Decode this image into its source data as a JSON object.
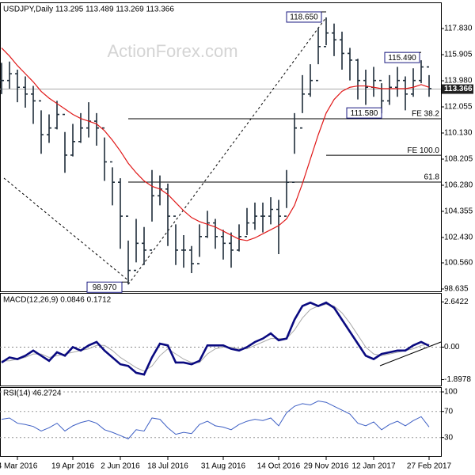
{
  "chart_data": {
    "type": "candlestick",
    "title": "USDJPY,Daily  113.295 113.489 113.269 113.366",
    "watermark": "ActionForex.com",
    "xlim": [
      -0.2,
      55.5
    ],
    "xticks": [
      {
        "value": 2,
        "label": "4 Mar 2016"
      },
      {
        "value": 9,
        "label": "19 Apr 2016"
      },
      {
        "value": 15,
        "label": "2 Jun 2016"
      },
      {
        "value": 21,
        "label": "18 Jul 2016"
      },
      {
        "value": 28,
        "label": "31 Aug 2016"
      },
      {
        "value": 35,
        "label": "14 Oct 2016"
      },
      {
        "value": 41,
        "label": "29 Nov 2016"
      },
      {
        "value": 47,
        "label": "12 Jan 2017"
      },
      {
        "value": 54,
        "label": "27 Feb 2017"
      }
    ],
    "ylim": [
      98.46,
      119.7
    ],
    "yticks": [
      {
        "value": 117.83,
        "label": "117.830"
      },
      {
        "value": 115.905,
        "label": "115.905"
      },
      {
        "value": 113.98,
        "label": "113.980"
      },
      {
        "value": 112.055,
        "label": "112.055"
      },
      {
        "value": 110.13,
        "label": "110.130"
      },
      {
        "value": 108.205,
        "label": "108.205"
      },
      {
        "value": 106.28,
        "label": "106.280"
      },
      {
        "value": 104.355,
        "label": "104.355"
      },
      {
        "value": 102.43,
        "label": "102.430"
      },
      {
        "value": 100.56,
        "label": "100.560"
      },
      {
        "value": 98.635,
        "label": "98.635"
      }
    ],
    "color": "#1f2d3a",
    "high": [
      115.3,
      115.4,
      114.8,
      114.3,
      113.6,
      111.8,
      111.5,
      112.5,
      110.2,
      110.8,
      111.6,
      112.4,
      111.6,
      109.8,
      107.6,
      106.8,
      102.2,
      103.8,
      103.2,
      107.4,
      107.0,
      106.4,
      103.4,
      102.6,
      101.8,
      103.4,
      104.4,
      103.8,
      103.0,
      102.8,
      103.4,
      104.6,
      105.0,
      105.0,
      105.4,
      105.2,
      107.4,
      111.6,
      114.4,
      115.2,
      117.9,
      118.65,
      118.2,
      117.6,
      116.4,
      115.6,
      114.8,
      115.0,
      113.8,
      114.4,
      115.0,
      114.3,
      114.9,
      115.49,
      114.4
    ],
    "low": [
      113.0,
      113.4,
      112.4,
      112.0,
      110.8,
      108.6,
      109.4,
      110.4,
      107.2,
      108.4,
      109.4,
      109.8,
      109.2,
      106.6,
      104.8,
      101.6,
      98.97,
      100.6,
      100.4,
      103.6,
      104.8,
      101.8,
      100.4,
      100.2,
      99.8,
      101.0,
      102.4,
      101.6,
      100.8,
      100.2,
      101.4,
      102.6,
      103.0,
      102.8,
      103.4,
      101.2,
      104.6,
      108.6,
      111.6,
      112.8,
      115.2,
      116.6,
      115.8,
      114.8,
      114.0,
      112.6,
      112.2,
      112.8,
      111.58,
      112.2,
      112.8,
      111.8,
      112.8,
      113.8,
      112.8
    ],
    "close": [
      114,
      114.5,
      113.5,
      113,
      112.5,
      110,
      110.5,
      111.5,
      108.5,
      109.5,
      110.5,
      111,
      110.5,
      108,
      106.5,
      104,
      100,
      102,
      101.5,
      105.5,
      106,
      104,
      101.5,
      101.5,
      100.5,
      102.5,
      103.5,
      102.5,
      102,
      101.5,
      102.5,
      103.5,
      104,
      104,
      104.5,
      104,
      106.5,
      110.5,
      113,
      114,
      116.5,
      117.5,
      117,
      116,
      115.5,
      114,
      113.5,
      114,
      112.5,
      113.5,
      114,
      113,
      114,
      115,
      113.4
    ],
    "moving_average": {
      "color": "#e01818",
      "values": [
        116.4,
        115.8,
        115.1,
        114.5,
        113.9,
        113.2,
        112.7,
        112.3,
        111.9,
        111.5,
        111.2,
        111.0,
        110.8,
        110.3,
        109.6,
        108.8,
        107.9,
        107.2,
        106.6,
        106.2,
        106.0,
        105.6,
        105.0,
        104.4,
        103.9,
        103.6,
        103.4,
        103.2,
        102.9,
        102.6,
        102.3,
        102.2,
        102.4,
        102.7,
        103.0,
        103.3,
        103.8,
        104.8,
        106.4,
        108.2,
        110.0,
        111.6,
        112.6,
        113.2,
        113.5,
        113.6,
        113.6,
        113.5,
        113.4,
        113.4,
        113.4,
        113.4,
        113.5,
        113.7,
        113.5
      ]
    },
    "last_price": 113.366,
    "annotations": [
      {
        "value": 118.65,
        "label": "118.650"
      },
      {
        "value": 98.97,
        "label": "98.970"
      },
      {
        "value": 111.58,
        "label": "111.580"
      },
      {
        "value": 115.49,
        "label": "115.490"
      }
    ],
    "levels": [
      {
        "label": "FE 38.2",
        "value": 111.18
      },
      {
        "label": "FE 100.0",
        "value": 108.49
      },
      {
        "label": "61.8",
        "value": 106.51
      }
    ],
    "macd": {
      "title": "MACD(12,26,9) 0.0846 0.1712",
      "ylim": [
        -2.29,
        3.12
      ],
      "yticks": [
        2.6422,
        {
          "value": 0,
          "label": "0.00"
        },
        -1.8978
      ],
      "series": [
        {
          "name": "MACD",
          "color": "#0a0a80",
          "values": [
            -0.9,
            -0.6,
            -0.7,
            -0.5,
            -0.2,
            -0.5,
            -0.8,
            -0.3,
            -0.5,
            0.0,
            -0.2,
            0.1,
            0.3,
            -0.2,
            -0.6,
            -1.0,
            -1.1,
            -1.5,
            -1.6,
            -0.6,
            0.2,
            0.1,
            -0.9,
            -0.9,
            -1.0,
            -0.8,
            0.1,
            0.1,
            0.1,
            -0.1,
            -0.2,
            0.0,
            0.3,
            0.5,
            0.8,
            0.4,
            0.5,
            1.6,
            2.4,
            2.6,
            2.4,
            2.6,
            2.3,
            1.6,
            0.9,
            0.2,
            -0.5,
            -0.7,
            -0.4,
            -0.3,
            -0.2,
            -0.2,
            0.1,
            0.3,
            0.08
          ]
        },
        {
          "name": "Signal",
          "color": "#a8a8a8",
          "values": [
            -0.8,
            -0.8,
            -0.7,
            -0.6,
            -0.4,
            -0.4,
            -0.6,
            -0.5,
            -0.4,
            -0.3,
            -0.2,
            -0.1,
            0.1,
            0.1,
            -0.2,
            -0.6,
            -0.9,
            -1.2,
            -1.4,
            -1.1,
            -0.5,
            -0.1,
            -0.4,
            -0.7,
            -0.9,
            -0.9,
            -0.4,
            -0.1,
            0.0,
            0.0,
            -0.1,
            -0.1,
            0.1,
            0.3,
            0.5,
            0.5,
            0.5,
            1.0,
            1.7,
            2.2,
            2.4,
            2.5,
            2.4,
            2.0,
            1.4,
            0.7,
            0.0,
            -0.4,
            -0.5,
            -0.4,
            -0.3,
            -0.2,
            -0.1,
            0.1,
            0.17
          ]
        }
      ]
    },
    "rsi": {
      "title": "RSI(14) 46.2724",
      "ylim": [
        0.5,
        106.1
      ],
      "yticks": [
        100,
        70,
        30
      ],
      "color": "#3d5fc4",
      "values": [
        58,
        60,
        52,
        50,
        47,
        40,
        45,
        52,
        40,
        48,
        53,
        56,
        52,
        42,
        38,
        33,
        28,
        42,
        40,
        60,
        58,
        45,
        35,
        38,
        36,
        50,
        55,
        48,
        46,
        42,
        50,
        55,
        58,
        56,
        60,
        48,
        68,
        78,
        82,
        80,
        86,
        84,
        78,
        72,
        66,
        52,
        48,
        54,
        42,
        50,
        55,
        48,
        56,
        62,
        46.27
      ]
    }
  }
}
